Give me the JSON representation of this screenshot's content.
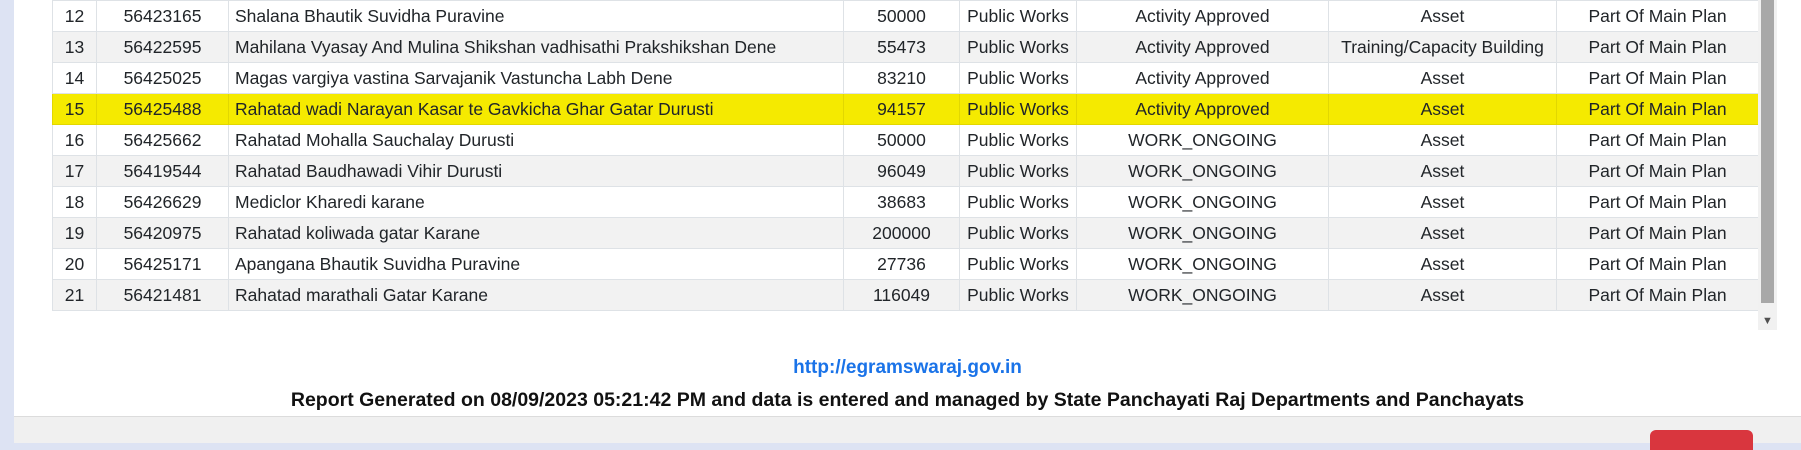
{
  "table": {
    "rows": [
      {
        "sn": "12",
        "code": "56423165",
        "name": "Shalana Bhautik Suvidha Puravine",
        "amount": "50000",
        "category": "Public Works",
        "status": "Activity Approved",
        "type": "Asset",
        "plan": "Part Of Main Plan",
        "highlighted": false
      },
      {
        "sn": "13",
        "code": "56422595",
        "name": "Mahilana Vyasay And Mulina Shikshan vadhisathi Prakshikshan Dene",
        "amount": "55473",
        "category": "Public Works",
        "status": "Activity Approved",
        "type": "Training/Capacity Building",
        "plan": "Part Of Main Plan",
        "highlighted": false
      },
      {
        "sn": "14",
        "code": "56425025",
        "name": "Magas vargiya vastina Sarvajanik Vastuncha Labh Dene",
        "amount": "83210",
        "category": "Public Works",
        "status": "Activity Approved",
        "type": "Asset",
        "plan": "Part Of Main Plan",
        "highlighted": false
      },
      {
        "sn": "15",
        "code": "56425488",
        "name": "Rahatad wadi Narayan Kasar te Gavkicha Ghar Gatar Durusti",
        "amount": "94157",
        "category": "Public Works",
        "status": "Activity Approved",
        "type": "Asset",
        "plan": "Part Of Main Plan",
        "highlighted": true
      },
      {
        "sn": "16",
        "code": "56425662",
        "name": "Rahatad Mohalla Sauchalay Durusti",
        "amount": "50000",
        "category": "Public Works",
        "status": "WORK_ONGOING",
        "type": "Asset",
        "plan": "Part Of Main Plan",
        "highlighted": false
      },
      {
        "sn": "17",
        "code": "56419544",
        "name": "Rahatad Baudhawadi Vihir Durusti",
        "amount": "96049",
        "category": "Public Works",
        "status": "WORK_ONGOING",
        "type": "Asset",
        "plan": "Part Of Main Plan",
        "highlighted": false
      },
      {
        "sn": "18",
        "code": "56426629",
        "name": "Mediclor Kharedi karane",
        "amount": "38683",
        "category": "Public Works",
        "status": "WORK_ONGOING",
        "type": "Asset",
        "plan": "Part Of Main Plan",
        "highlighted": false
      },
      {
        "sn": "19",
        "code": "56420975",
        "name": "Rahatad koliwada gatar Karane",
        "amount": "200000",
        "category": "Public Works",
        "status": "WORK_ONGOING",
        "type": "Asset",
        "plan": "Part Of Main Plan",
        "highlighted": false
      },
      {
        "sn": "20",
        "code": "56425171",
        "name": "Apangana Bhautik Suvidha Puravine",
        "amount": "27736",
        "category": "Public Works",
        "status": "WORK_ONGOING",
        "type": "Asset",
        "plan": "Part Of Main Plan",
        "highlighted": false
      },
      {
        "sn": "21",
        "code": "56421481",
        "name": "Rahatad marathali Gatar Karane",
        "amount": "116049",
        "category": "Public Works",
        "status": "WORK_ONGOING",
        "type": "Asset",
        "plan": "Part Of Main Plan",
        "highlighted": false
      }
    ]
  },
  "footer": {
    "link_text": "http://egramswaraj.gov.in",
    "note": "Report Generated on 08/09/2023 05:21:42 PM and data is entered and managed by State Panchayati Raj Departments and Panchayats"
  },
  "scrollbar": {
    "down_arrow_icon": "triangle-down-icon"
  },
  "colors": {
    "highlight": "#f5ea00",
    "link": "#1a73e8",
    "action_button": "#d9363e"
  }
}
